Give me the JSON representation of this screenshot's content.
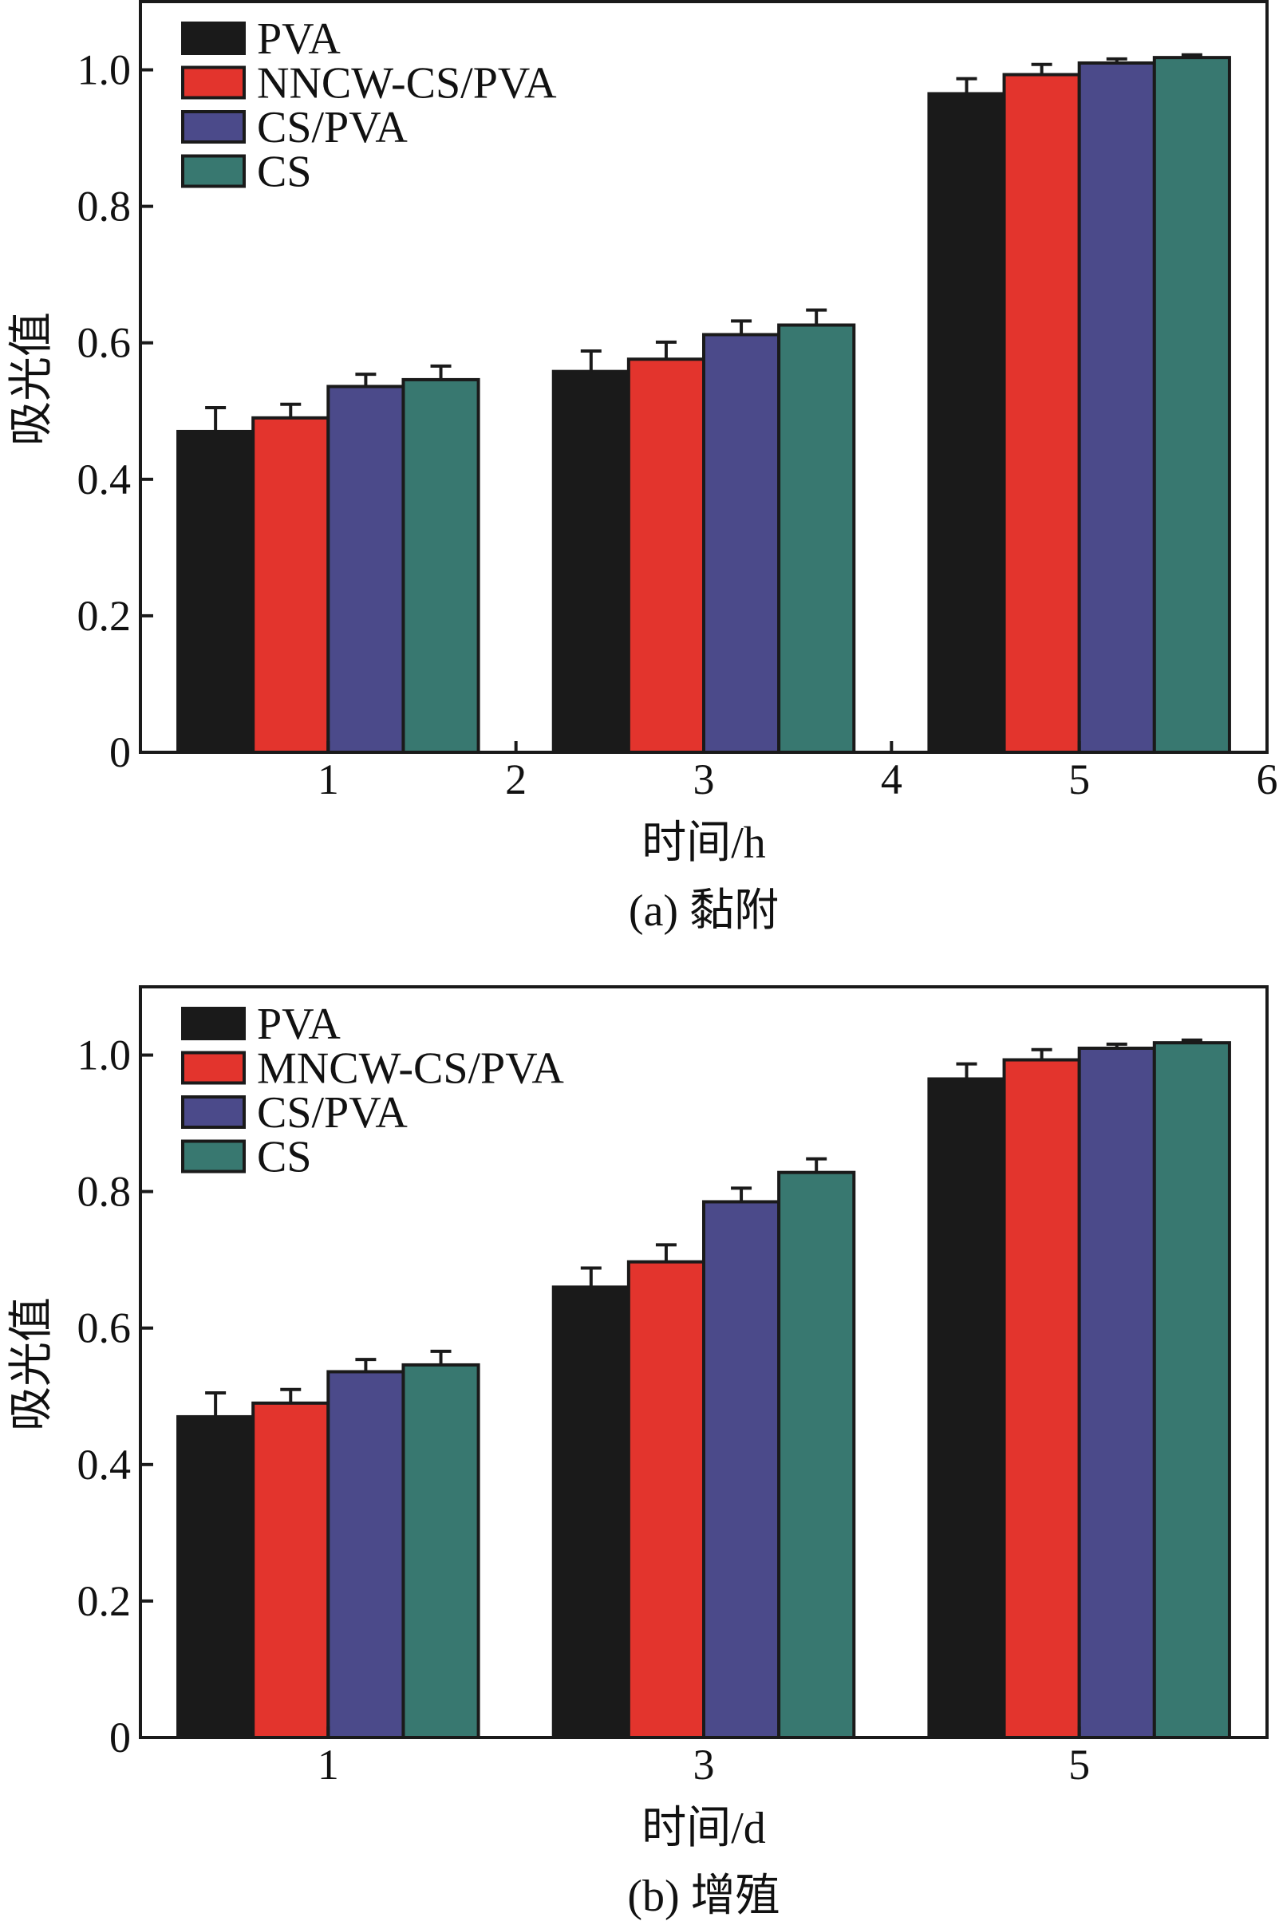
{
  "colors": {
    "PVA": "#1a1a1a",
    "NNCW-CS/PVA": "#e3342d",
    "CS/PVA": "#4b4a8a",
    "CS": "#387870",
    "outline": "#1a1a1a"
  },
  "chart_data": [
    {
      "type": "bar",
      "caption": "(a) 黏附",
      "xlabel": "时间/h",
      "ylabel": "吸光值",
      "xlim": [
        0,
        6
      ],
      "ylim": [
        0,
        1.1
      ],
      "x_ticks": [
        1,
        2,
        3,
        4,
        5,
        6
      ],
      "x_tick_labels": [
        "1",
        "2",
        "3",
        "4",
        "5",
        "6"
      ],
      "y_ticks": [
        0,
        0.2,
        0.4,
        0.6,
        0.8,
        1.0
      ],
      "y_tick_labels": [
        "0",
        "0.2",
        "0.4",
        "0.6",
        "0.8",
        "1.0"
      ],
      "group_centers": [
        1,
        3,
        5
      ],
      "bar_width": 0.4,
      "legend_position": "top-left",
      "grid": false,
      "series": [
        {
          "name": "PVA",
          "color": "#1a1a1a",
          "values": [
            0.47,
            0.558,
            0.965
          ],
          "errors": [
            0.035,
            0.03,
            0.022
          ]
        },
        {
          "name": "NNCW-CS/PVA",
          "color": "#e3342d",
          "values": [
            0.49,
            0.576,
            0.993
          ],
          "errors": [
            0.02,
            0.025,
            0.015
          ]
        },
        {
          "name": "CS/PVA",
          "color": "#4b4a8a",
          "values": [
            0.536,
            0.612,
            1.01
          ],
          "errors": [
            0.018,
            0.02,
            0.006
          ]
        },
        {
          "name": "CS",
          "color": "#387870",
          "values": [
            0.546,
            0.626,
            1.018
          ],
          "errors": [
            0.02,
            0.022,
            0.004
          ]
        }
      ]
    },
    {
      "type": "bar",
      "caption": "(b) 增殖",
      "xlabel": "时间/d",
      "ylabel": "吸光值",
      "xlim": [
        0,
        6
      ],
      "ylim": [
        0,
        1.1
      ],
      "x_ticks": [
        1,
        3,
        5
      ],
      "x_tick_labels": [
        "1",
        "3",
        "5"
      ],
      "y_ticks": [
        0,
        0.2,
        0.4,
        0.6,
        0.8,
        1.0
      ],
      "y_tick_labels": [
        "0",
        "0.2",
        "0.4",
        "0.6",
        "0.8",
        "1.0"
      ],
      "group_centers": [
        1,
        3,
        5
      ],
      "bar_width": 0.4,
      "legend_position": "top-left",
      "grid": false,
      "series": [
        {
          "name": "PVA",
          "color": "#1a1a1a",
          "values": [
            0.47,
            0.66,
            0.965
          ],
          "errors": [
            0.035,
            0.028,
            0.022
          ]
        },
        {
          "name": "MNCW-CS/PVA",
          "color": "#e3342d",
          "values": [
            0.49,
            0.697,
            0.993
          ],
          "errors": [
            0.02,
            0.025,
            0.015
          ]
        },
        {
          "name": "CS/PVA",
          "color": "#4b4a8a",
          "values": [
            0.536,
            0.785,
            1.01
          ],
          "errors": [
            0.018,
            0.02,
            0.006
          ]
        },
        {
          "name": "CS",
          "color": "#387870",
          "values": [
            0.546,
            0.828,
            1.018
          ],
          "errors": [
            0.02,
            0.02,
            0.004
          ]
        }
      ]
    }
  ]
}
